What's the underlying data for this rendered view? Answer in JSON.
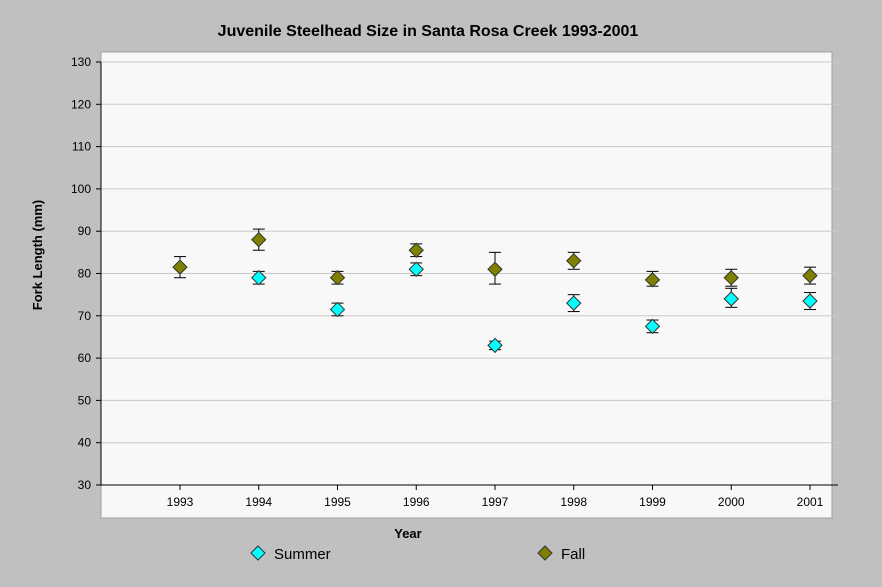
{
  "chart_data": {
    "type": "scatter",
    "title": "Juvenile Steelhead Size in Santa Rosa Creek 1993-2001",
    "xlabel": "Year",
    "ylabel": "Fork Length (mm)",
    "categories": [
      "1993",
      "1994",
      "1995",
      "1996",
      "1997",
      "1998",
      "1999",
      "2000",
      "2001"
    ],
    "ylim": [
      30,
      130
    ],
    "yticks": [
      30,
      40,
      50,
      60,
      70,
      80,
      90,
      100,
      110,
      120,
      130
    ],
    "grid": true,
    "legend_position": "bottom",
    "series": [
      {
        "name": "Summer",
        "color": "#00ffff",
        "marker": "diamond",
        "values": [
          null,
          79,
          71.5,
          81,
          63,
          73,
          67.5,
          74,
          73.5
        ],
        "error_low": [
          null,
          77.5,
          70,
          79.5,
          62,
          71,
          66,
          72,
          71.5
        ],
        "error_high": [
          null,
          80.5,
          73,
          82.5,
          64,
          75,
          69,
          76.5,
          75.5
        ]
      },
      {
        "name": "Fall",
        "color": "#808000",
        "marker": "diamond",
        "values": [
          81.5,
          88,
          79,
          85.5,
          81,
          83,
          78.5,
          79,
          79.5
        ],
        "error_low": [
          79,
          85.5,
          77.5,
          84,
          77.5,
          81,
          77,
          77,
          77.5
        ],
        "error_high": [
          84,
          90.5,
          80.5,
          87,
          85,
          85,
          80.5,
          81,
          81.5
        ]
      }
    ]
  }
}
